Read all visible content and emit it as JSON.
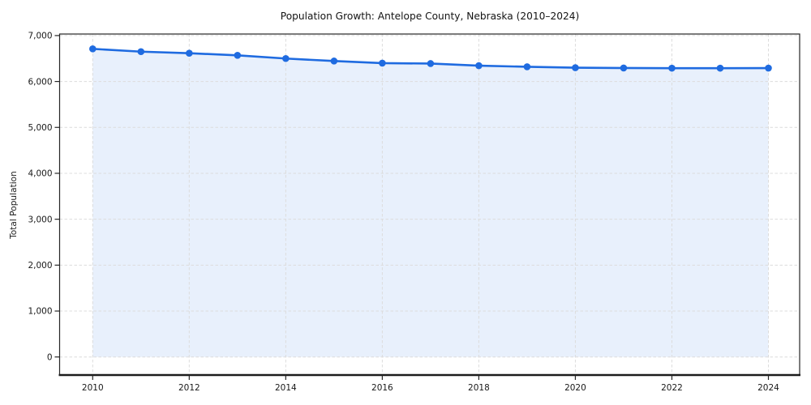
{
  "page": {
    "background": "#ffffff"
  },
  "chart_data": {
    "type": "line",
    "title": "Population Growth: Antelope County, Nebraska (2010–2024)",
    "xlabel": "",
    "ylabel": "Total Population",
    "x": [
      2010,
      2011,
      2012,
      2013,
      2014,
      2015,
      2016,
      2017,
      2018,
      2019,
      2020,
      2021,
      2022,
      2023,
      2024
    ],
    "series": [
      {
        "name": "Total Population",
        "values": [
          6710,
          6650,
          6615,
          6570,
          6500,
          6445,
          6400,
          6390,
          6345,
          6320,
          6300,
          6293,
          6290,
          6290,
          6292
        ]
      }
    ],
    "xtick_values": [
      2010,
      2012,
      2014,
      2016,
      2018,
      2020,
      2022,
      2024
    ],
    "xtick_labels": [
      "2010",
      "2012",
      "2014",
      "2016",
      "2018",
      "2020",
      "2022",
      "2024"
    ],
    "ytick_values": [
      0,
      1000,
      2000,
      3000,
      4000,
      5000,
      6000,
      7000
    ],
    "ytick_labels": [
      "0",
      "1,000",
      "2,000",
      "3,000",
      "4,000",
      "5,000",
      "6,000",
      "7,000"
    ],
    "ylim": [
      0,
      7000
    ],
    "xlim": [
      2010,
      2024
    ],
    "grid": true,
    "grid_style": "dashed",
    "legend": "none",
    "marker": "circle",
    "line_color": "#1f6be0",
    "fill_color": "#e8f0fb",
    "grid_color": "#dcdcdc",
    "spine_color": "#262626",
    "text_color": "#191919"
  }
}
